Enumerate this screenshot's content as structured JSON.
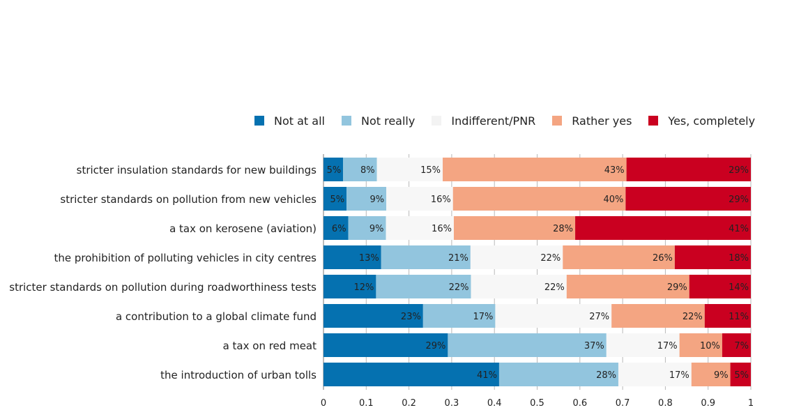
{
  "chart_data": {
    "type": "bar",
    "orientation": "horizontal",
    "stacked": true,
    "categories": [
      "stricter insulation standards for new buildings",
      "stricter standards on pollution from new vehicles",
      "a tax on kerosene (aviation)",
      "the prohibition of polluting vehicles in city centres",
      "stricter standards on pollution during roadworthiness tests",
      "a contribution to a global climate fund",
      "a tax on red meat",
      "the introduction of urban tolls"
    ],
    "series": [
      {
        "name": "Not at all",
        "color": "#0571b0",
        "values": [
          0.046,
          0.054,
          0.058,
          0.135,
          0.123,
          0.233,
          0.291,
          0.411
        ],
        "labels": [
          "5%",
          "5%",
          "6%",
          "13%",
          "12%",
          "23%",
          "29%",
          "41%"
        ]
      },
      {
        "name": "Not really",
        "color": "#92c5de",
        "values": [
          0.079,
          0.093,
          0.088,
          0.209,
          0.222,
          0.169,
          0.371,
          0.279
        ],
        "labels": [
          "8%",
          "9%",
          "9%",
          "21%",
          "22%",
          "17%",
          "37%",
          "28%"
        ]
      },
      {
        "name": "Indifferent/PNR",
        "color": "#f7f7f7",
        "values": [
          0.154,
          0.156,
          0.159,
          0.216,
          0.224,
          0.272,
          0.171,
          0.171
        ],
        "labels": [
          "15%",
          "16%",
          "16%",
          "22%",
          "22%",
          "27%",
          "17%",
          "17%"
        ]
      },
      {
        "name": "Rather yes",
        "color": "#f4a582",
        "values": [
          0.43,
          0.404,
          0.284,
          0.262,
          0.287,
          0.218,
          0.1,
          0.091
        ],
        "labels": [
          "43%",
          "40%",
          "28%",
          "26%",
          "29%",
          "22%",
          "10%",
          "9%"
        ]
      },
      {
        "name": "Yes, completely",
        "color": "#ca0020",
        "values": [
          0.291,
          0.293,
          0.411,
          0.178,
          0.144,
          0.108,
          0.067,
          0.048
        ],
        "labels": [
          "29%",
          "29%",
          "41%",
          "18%",
          "14%",
          "11%",
          "7%",
          "5%"
        ]
      }
    ],
    "xlim": [
      0,
      1
    ],
    "xticks": [
      "0",
      "0.1",
      "0.2",
      "0.3",
      "0.4",
      "0.5",
      "0.6",
      "0.7",
      "0.8",
      "0.9",
      "1"
    ],
    "grid": true,
    "legend_position": "top-right"
  }
}
